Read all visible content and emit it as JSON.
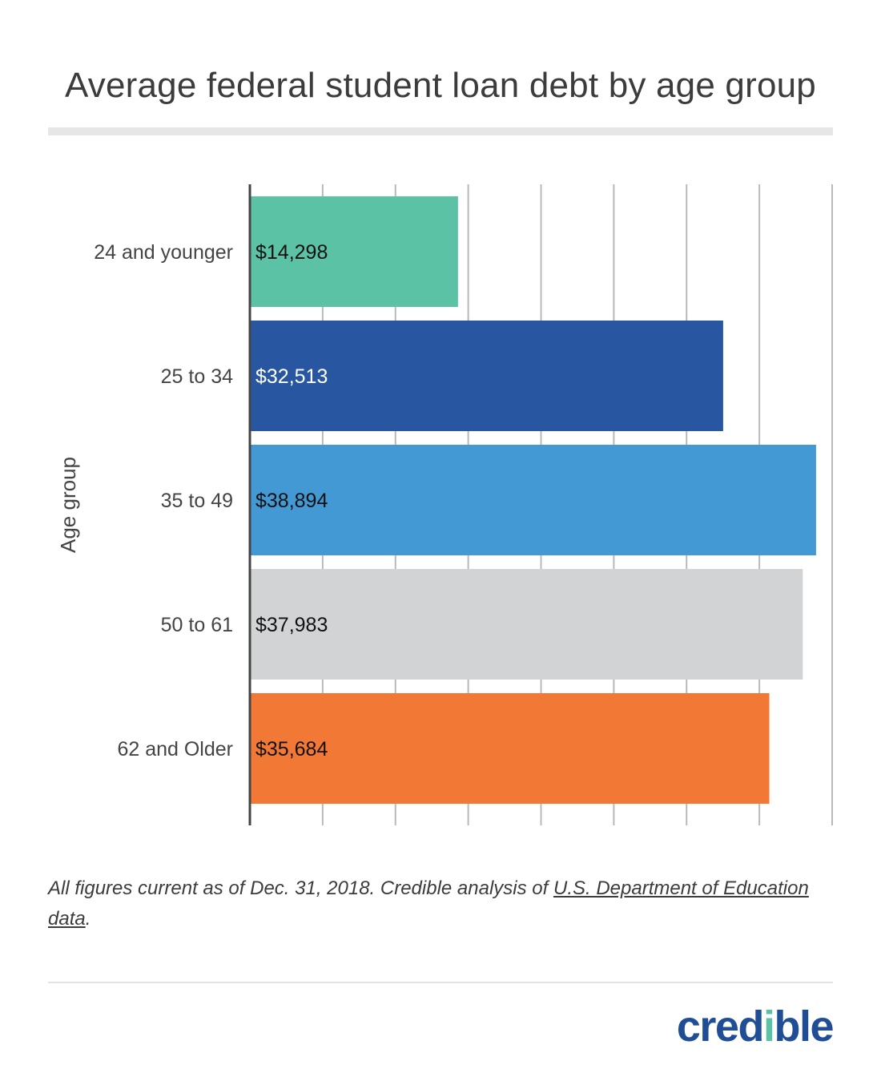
{
  "chart_data": {
    "type": "bar",
    "orientation": "horizontal",
    "title": "Average federal student loan debt by age group",
    "ylabel": "Age group",
    "xlabel": "",
    "xlim": [
      0,
      40000
    ],
    "grid_step": 5000,
    "grid": true,
    "categories": [
      "24 and younger",
      "25 to 34",
      "35 to 49",
      "50 to 61",
      "62 and Older"
    ],
    "values": [
      14298,
      32513,
      38894,
      37983,
      35684
    ],
    "value_labels": [
      "$14,298",
      "$32,513",
      "$38,894",
      "$37,983",
      "$35,684"
    ],
    "colors": [
      "#5cc2a6",
      "#2856a0",
      "#4299d4",
      "#d2d3d5",
      "#f27935"
    ],
    "label_colors": [
      "#111111",
      "#ffffff",
      "#111111",
      "#111111",
      "#111111"
    ]
  },
  "footnote": {
    "text": "All figures current as of Dec. 31, 2018. Credible analysis of ",
    "link": "U.S. Department of Education data",
    "end": "."
  },
  "brand": {
    "prefix": "cred",
    "dot_letter": "i",
    "suffix": "ble"
  }
}
